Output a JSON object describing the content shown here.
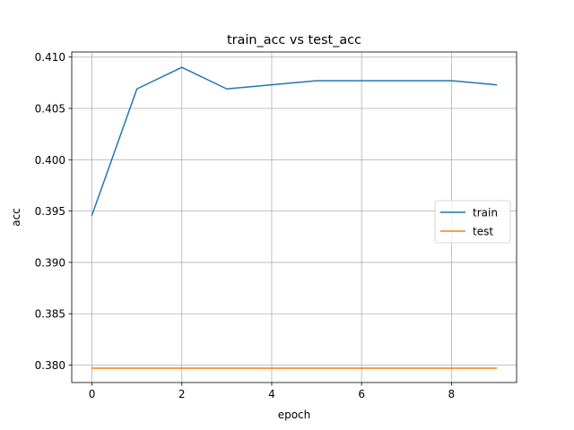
{
  "chart_data": {
    "type": "line",
    "title": "train_acc vs test_acc",
    "xlabel": "epoch",
    "ylabel": "acc",
    "xlim": [
      -0.45,
      9.45
    ],
    "ylim": [
      0.3783,
      0.4105
    ],
    "xticks": [
      0,
      2,
      4,
      6,
      8
    ],
    "yticks": [
      0.38,
      0.385,
      0.39,
      0.395,
      0.4,
      0.405,
      0.41
    ],
    "ytick_labels": [
      "0.380",
      "0.385",
      "0.390",
      "0.395",
      "0.400",
      "0.405",
      "0.410"
    ],
    "grid": true,
    "legend_position": "center-right",
    "x": [
      0,
      1,
      2,
      3,
      4,
      5,
      6,
      7,
      8,
      9
    ],
    "series": [
      {
        "name": "train",
        "color": "#1f77b4",
        "values": [
          0.3946,
          0.4069,
          0.409,
          0.4069,
          0.4073,
          0.4077,
          0.4077,
          0.4077,
          0.4077,
          0.4073
        ]
      },
      {
        "name": "test",
        "color": "#ff7f0e",
        "values": [
          0.3797,
          0.3797,
          0.3797,
          0.3797,
          0.3797,
          0.3797,
          0.3797,
          0.3797,
          0.3797,
          0.3797
        ]
      }
    ]
  }
}
